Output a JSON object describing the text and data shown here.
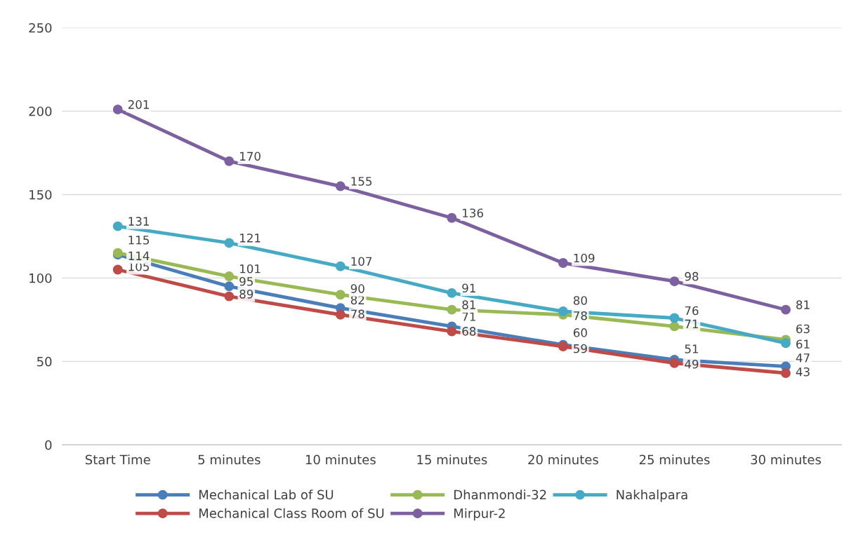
{
  "chart_data": {
    "type": "line",
    "categories": [
      "Start Time",
      "5 minutes",
      "10 minutes",
      "15 minutes",
      "20 minutes",
      "25 minutes",
      "30 minutes"
    ],
    "series": [
      {
        "name": "Mechanical Lab of SU",
        "color": "#4a7ebb",
        "values": [
          114,
          95,
          82,
          71,
          60,
          51,
          47
        ]
      },
      {
        "name": "Mechanical Class Room of SU",
        "color": "#be4b48",
        "values": [
          105,
          89,
          78,
          68,
          59,
          49,
          43
        ]
      },
      {
        "name": "Dhanmondi-32",
        "color": "#98b954",
        "values": [
          115,
          101,
          90,
          81,
          78,
          71,
          63
        ]
      },
      {
        "name": "Mirpur-2",
        "color": "#7d60a0",
        "values": [
          201,
          170,
          155,
          136,
          109,
          98,
          81
        ]
      },
      {
        "name": "Nakhalpara",
        "color": "#46aac5",
        "values": [
          131,
          121,
          107,
          91,
          80,
          76,
          61
        ]
      }
    ],
    "ylim": [
      0,
      250
    ],
    "yticks": [
      0,
      50,
      100,
      150,
      200,
      250
    ],
    "grid": "y",
    "legend": "bottom",
    "marker": "circle",
    "line_style": "solid",
    "data_labels": true
  }
}
